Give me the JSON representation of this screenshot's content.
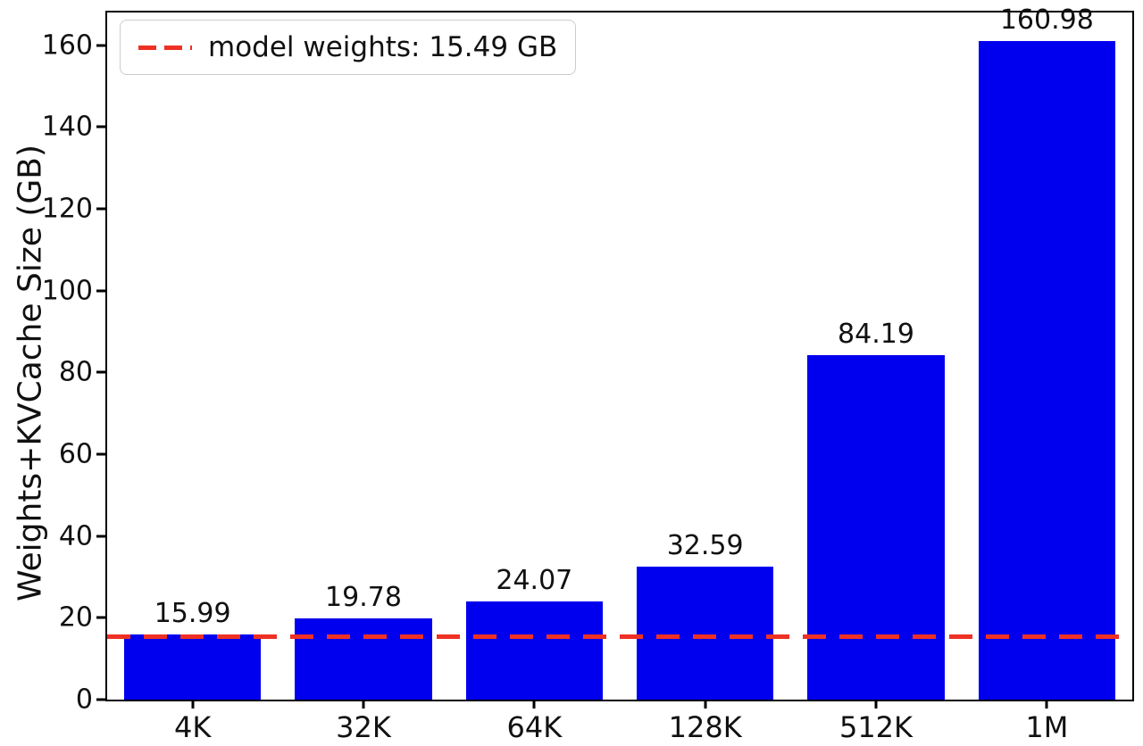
{
  "chart_data": {
    "type": "bar",
    "title": "",
    "xlabel": "",
    "ylabel": "Weights+KVCache Size (GB)",
    "categories": [
      "4K",
      "32K",
      "64K",
      "128K",
      "512K",
      "1M"
    ],
    "values": [
      15.99,
      19.78,
      24.07,
      32.59,
      84.19,
      160.98
    ],
    "value_labels": [
      "15.99",
      "19.78",
      "24.07",
      "32.59",
      "84.19",
      "160.98"
    ],
    "ylim": [
      0,
      168
    ],
    "yticks": [
      0,
      20,
      40,
      60,
      80,
      100,
      120,
      140,
      160
    ],
    "grid": false,
    "bar_color": "#0000ee",
    "threshold_line": {
      "value": 15.49,
      "color": "#ee3124",
      "style": "dashed"
    },
    "legend": {
      "position": "upper left",
      "entries": [
        {
          "label": "model weights: 15.49 GB",
          "style": "dashed-line",
          "color": "#ee3124"
        }
      ]
    }
  }
}
